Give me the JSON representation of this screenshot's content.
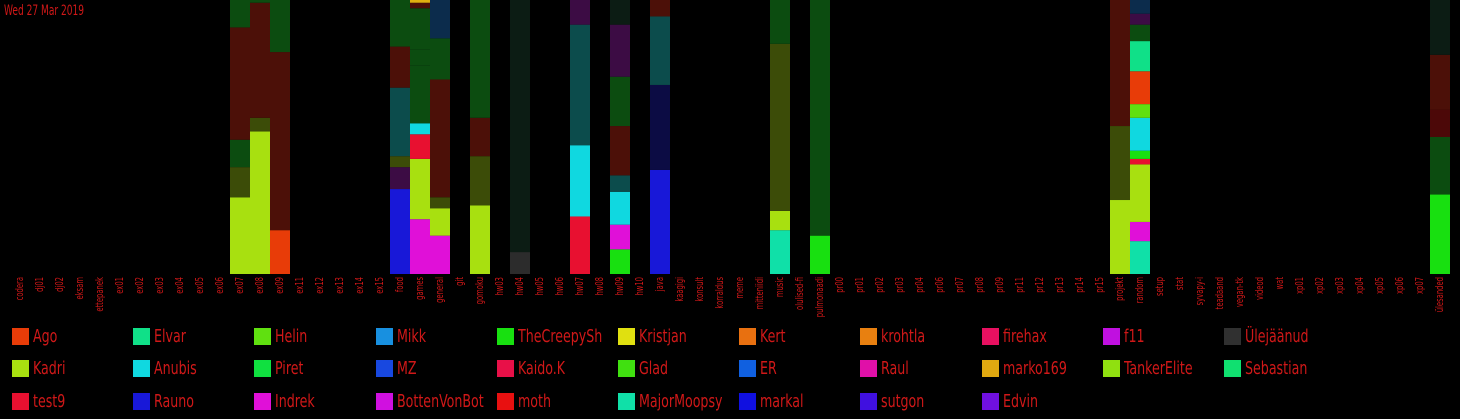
{
  "date_label": "Wed 27 Mar 2019",
  "chart_data": {
    "type": "bar",
    "stacked": true,
    "ylim": [
      0,
      100
    ],
    "categories": [
      "codera",
      "dj01",
      "dj02",
      "eksam",
      "ettepanek",
      "ex01",
      "ex02",
      "ex03",
      "ex04",
      "ex05",
      "ex06",
      "ex07",
      "ex08",
      "ex09",
      "ex11",
      "ex12",
      "ex13",
      "ex14",
      "ex15",
      "food",
      "games",
      "general",
      "git",
      "gomoku",
      "hw03",
      "hw04",
      "hw05",
      "hw06",
      "hw07",
      "hw08",
      "hw09",
      "hw10",
      "java",
      "kaagigi",
      "konsult",
      "korraldus",
      "meme",
      "mitteniidi",
      "music",
      "olulised-fi",
      "pulmonaadi",
      "pr00",
      "pr01",
      "pr02",
      "pr03",
      "pr04",
      "pr06",
      "pr07",
      "pr08",
      "pr09",
      "pr11",
      "pr12",
      "pr13",
      "pr14",
      "pr15",
      "projekt",
      "random",
      "setup",
      "stat",
      "syvapy-i",
      "teadaand",
      "vegan-tk",
      "videod",
      "wat",
      "xp01",
      "xp02",
      "xp03",
      "xp04",
      "xp05",
      "xp06",
      "xp07",
      "ülesanded"
    ],
    "stacks": {
      "ex07": [
        [
          28,
          "#a8e010"
        ],
        [
          11,
          "#3c4c08"
        ],
        [
          10,
          "#0c4c10"
        ],
        [
          41,
          "#4c1008"
        ],
        [
          10,
          "#0c4c10"
        ]
      ],
      "ex08": [
        [
          52,
          "#a8e010"
        ],
        [
          5,
          "#3c4c08"
        ],
        [
          42,
          "#4c1008"
        ],
        [
          1,
          "#0c4c10"
        ]
      ],
      "ex09": [
        [
          16,
          "#e83c08"
        ],
        [
          65,
          "#4c1008"
        ],
        [
          19,
          "#0c4c10"
        ]
      ],
      "food": [
        [
          31,
          "#1818d8"
        ],
        [
          8,
          "#3c0c44"
        ],
        [
          4,
          "#3c4c08"
        ],
        [
          25,
          "#0c4c4c"
        ],
        [
          15,
          "#4c1008"
        ],
        [
          17,
          "#0c4c10"
        ]
      ],
      "games": [
        [
          20,
          "#e010d8"
        ],
        [
          22,
          "#a8e010"
        ],
        [
          9,
          "#e81030"
        ],
        [
          4,
          "#10d8e0"
        ],
        [
          21,
          "#0c4c10"
        ],
        [
          6,
          "#0c4c10"
        ],
        [
          15,
          "#0c4c10"
        ],
        [
          2,
          "#4c1008"
        ],
        [
          1,
          "#e0b010"
        ]
      ],
      "general": [
        [
          14,
          "#e010d8"
        ],
        [
          10,
          "#a8e010"
        ],
        [
          4,
          "#3c4c08"
        ],
        [
          43,
          "#4c1008"
        ],
        [
          15,
          "#0c4c10"
        ],
        [
          14,
          "#0c2c4c"
        ]
      ],
      "gomoku": [
        [
          25,
          "#a8e010"
        ],
        [
          18,
          "#3c4c08"
        ],
        [
          14,
          "#4c1008"
        ],
        [
          43,
          "#0c4c10"
        ]
      ],
      "hw04": [
        [
          8,
          "#2c2c2c"
        ],
        [
          92,
          "#0c1c14"
        ]
      ],
      "hw07": [
        [
          21,
          "#e81030"
        ],
        [
          26,
          "#10d8e0"
        ],
        [
          44,
          "#0c4c4c"
        ],
        [
          9,
          "#3c0c44"
        ]
      ],
      "hw09": [
        [
          9,
          "#18e010"
        ],
        [
          9,
          "#e010d8"
        ],
        [
          12,
          "#10d8e0"
        ],
        [
          6,
          "#0c4c4c"
        ],
        [
          18,
          "#4c1008"
        ],
        [
          18,
          "#0c4c10"
        ],
        [
          19,
          "#3c0c44"
        ],
        [
          9,
          "#0c1c14"
        ]
      ],
      "java": [
        [
          38,
          "#1818d8"
        ],
        [
          31,
          "#0c0c44"
        ],
        [
          25,
          "#0c4c4c"
        ],
        [
          6,
          "#4c1008"
        ]
      ],
      "music": [
        [
          16,
          "#10e0a8"
        ],
        [
          7,
          "#a8e010"
        ],
        [
          61,
          "#3c4c08"
        ],
        [
          16,
          "#0c4c10"
        ]
      ],
      "pulmonaadi": [
        [
          14,
          "#18e010"
        ],
        [
          86,
          "#0c4c10"
        ]
      ],
      "projekt": [
        [
          27,
          "#a8e010"
        ],
        [
          27,
          "#3c4c08"
        ],
        [
          46,
          "#4c1008"
        ]
      ],
      "random": [
        [
          12,
          "#10e0a8"
        ],
        [
          7,
          "#e010d8"
        ],
        [
          21,
          "#a8e010"
        ],
        [
          2,
          "#e81030"
        ],
        [
          3,
          "#18e010"
        ],
        [
          12,
          "#10d8e0"
        ],
        [
          5,
          "#60e010"
        ],
        [
          12,
          "#e83c08"
        ],
        [
          11,
          "#10e088"
        ],
        [
          6,
          "#0c4c10"
        ],
        [
          4,
          "#3c0c44"
        ],
        [
          5,
          "#0c2c4c"
        ]
      ],
      "ülesanded": [
        [
          29,
          "#18e010"
        ],
        [
          21,
          "#0c4c10"
        ],
        [
          10,
          "#4c0808"
        ],
        [
          20,
          "#4c1008"
        ],
        [
          20,
          "#0c1c14"
        ]
      ]
    },
    "legend": [
      {
        "name": "Ago",
        "color": "#e83c08"
      },
      {
        "name": "Elvar",
        "color": "#10e088"
      },
      {
        "name": "Helin",
        "color": "#60e010"
      },
      {
        "name": "Mikk",
        "color": "#1890e0"
      },
      {
        "name": "TheCreepySh",
        "color": "#18e010"
      },
      {
        "name": "Kristjan",
        "color": "#e0e010"
      },
      {
        "name": "Kert",
        "color": "#e87010"
      },
      {
        "name": "krohtla",
        "color": "#e88010"
      },
      {
        "name": "firehax",
        "color": "#e81060"
      },
      {
        "name": "f11",
        "color": "#c010e0"
      },
      {
        "name": "Ülejäänud",
        "color": "#303030"
      },
      {
        "name": "Kadri",
        "color": "#a8e010"
      },
      {
        "name": "Anubis",
        "color": "#10d8e0"
      },
      {
        "name": "Piret",
        "color": "#10e040"
      },
      {
        "name": "MZ",
        "color": "#1848e0"
      },
      {
        "name": "Kaido.K",
        "color": "#e81048"
      },
      {
        "name": "Glad",
        "color": "#40e010"
      },
      {
        "name": "ER",
        "color": "#1060e0"
      },
      {
        "name": "Raul",
        "color": "#e010a8"
      },
      {
        "name": "marko169",
        "color": "#e0a810"
      },
      {
        "name": "TankerElite",
        "color": "#90e010"
      },
      {
        "name": "Sebastian",
        "color": "#10e070"
      },
      {
        "name": "test9",
        "color": "#e81030"
      },
      {
        "name": "Rauno",
        "color": "#1818d8"
      },
      {
        "name": "Indrek",
        "color": "#e010d8"
      },
      {
        "name": "BottenVonBot",
        "color": "#d010e0"
      },
      {
        "name": "moth",
        "color": "#e81010"
      },
      {
        "name": "MajorMoopsy",
        "color": "#10e0a8"
      },
      {
        "name": "markal",
        "color": "#1010e0"
      },
      {
        "name": "sutgon",
        "color": "#4010e0"
      },
      {
        "name": "Edvin",
        "color": "#7010e0"
      }
    ]
  }
}
